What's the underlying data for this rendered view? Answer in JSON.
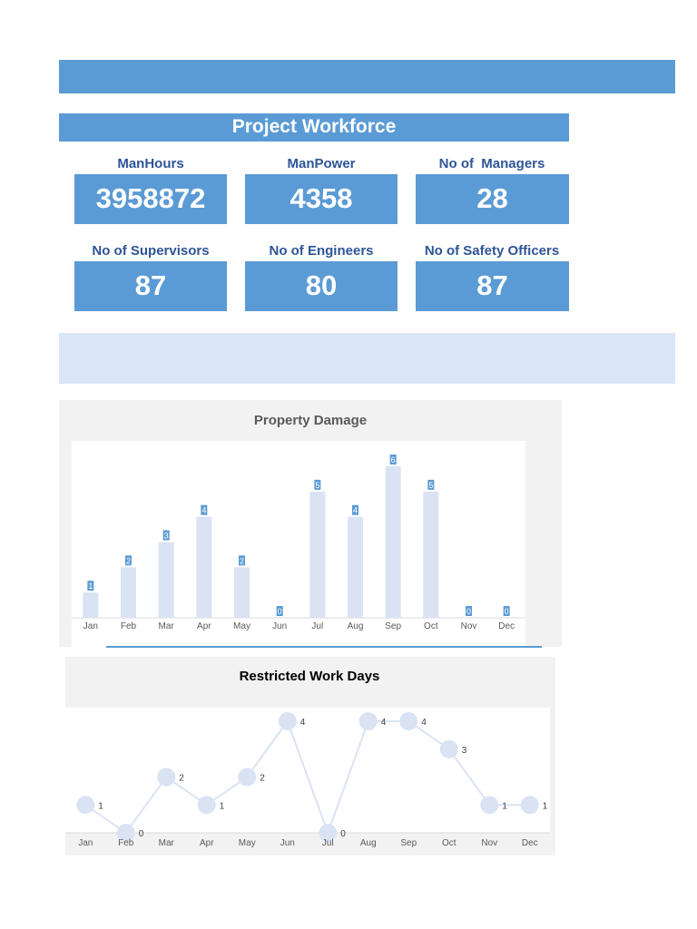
{
  "workforce": {
    "title": "Project Workforce",
    "kpis": [
      {
        "label": "ManHours",
        "value": "3958872"
      },
      {
        "label": "ManPower",
        "value": "4358"
      },
      {
        "label": "No of  Managers",
        "value": "28"
      },
      {
        "label": "No of Supervisors",
        "value": "87"
      },
      {
        "label": "No of Engineers",
        "value": "80"
      },
      {
        "label": "No of Safety Officers",
        "value": "87"
      }
    ]
  },
  "colors": {
    "primary": "#5b9bd5",
    "dark_text": "#2e5597",
    "light_band": "#dae6f6",
    "mark": "#dae3f3",
    "panel": "#f2f2f2"
  },
  "chart_data": [
    {
      "type": "bar",
      "title": "Property Damage",
      "categories": [
        "Jan",
        "Feb",
        "Mar",
        "Apr",
        "May",
        "Jun",
        "Jul",
        "Aug",
        "Sep",
        "Oct",
        "Nov",
        "Dec"
      ],
      "values": [
        1,
        2,
        3,
        4,
        2,
        0,
        5,
        4,
        6,
        5,
        0,
        0
      ],
      "xlabel": "",
      "ylabel": "",
      "ylim": [
        0,
        6
      ],
      "grid": false,
      "data_labels": true
    },
    {
      "type": "line",
      "title": "Restricted Work Days",
      "categories": [
        "Jan",
        "Feb",
        "Mar",
        "Apr",
        "May",
        "Jun",
        "Jul",
        "Aug",
        "Sep",
        "Oct",
        "Nov",
        "Dec"
      ],
      "values": [
        1,
        0,
        2,
        1,
        2,
        4,
        0,
        4,
        4,
        3,
        1,
        1
      ],
      "xlabel": "",
      "ylabel": "",
      "ylim": [
        0,
        4
      ],
      "grid": false,
      "data_labels": true
    }
  ]
}
